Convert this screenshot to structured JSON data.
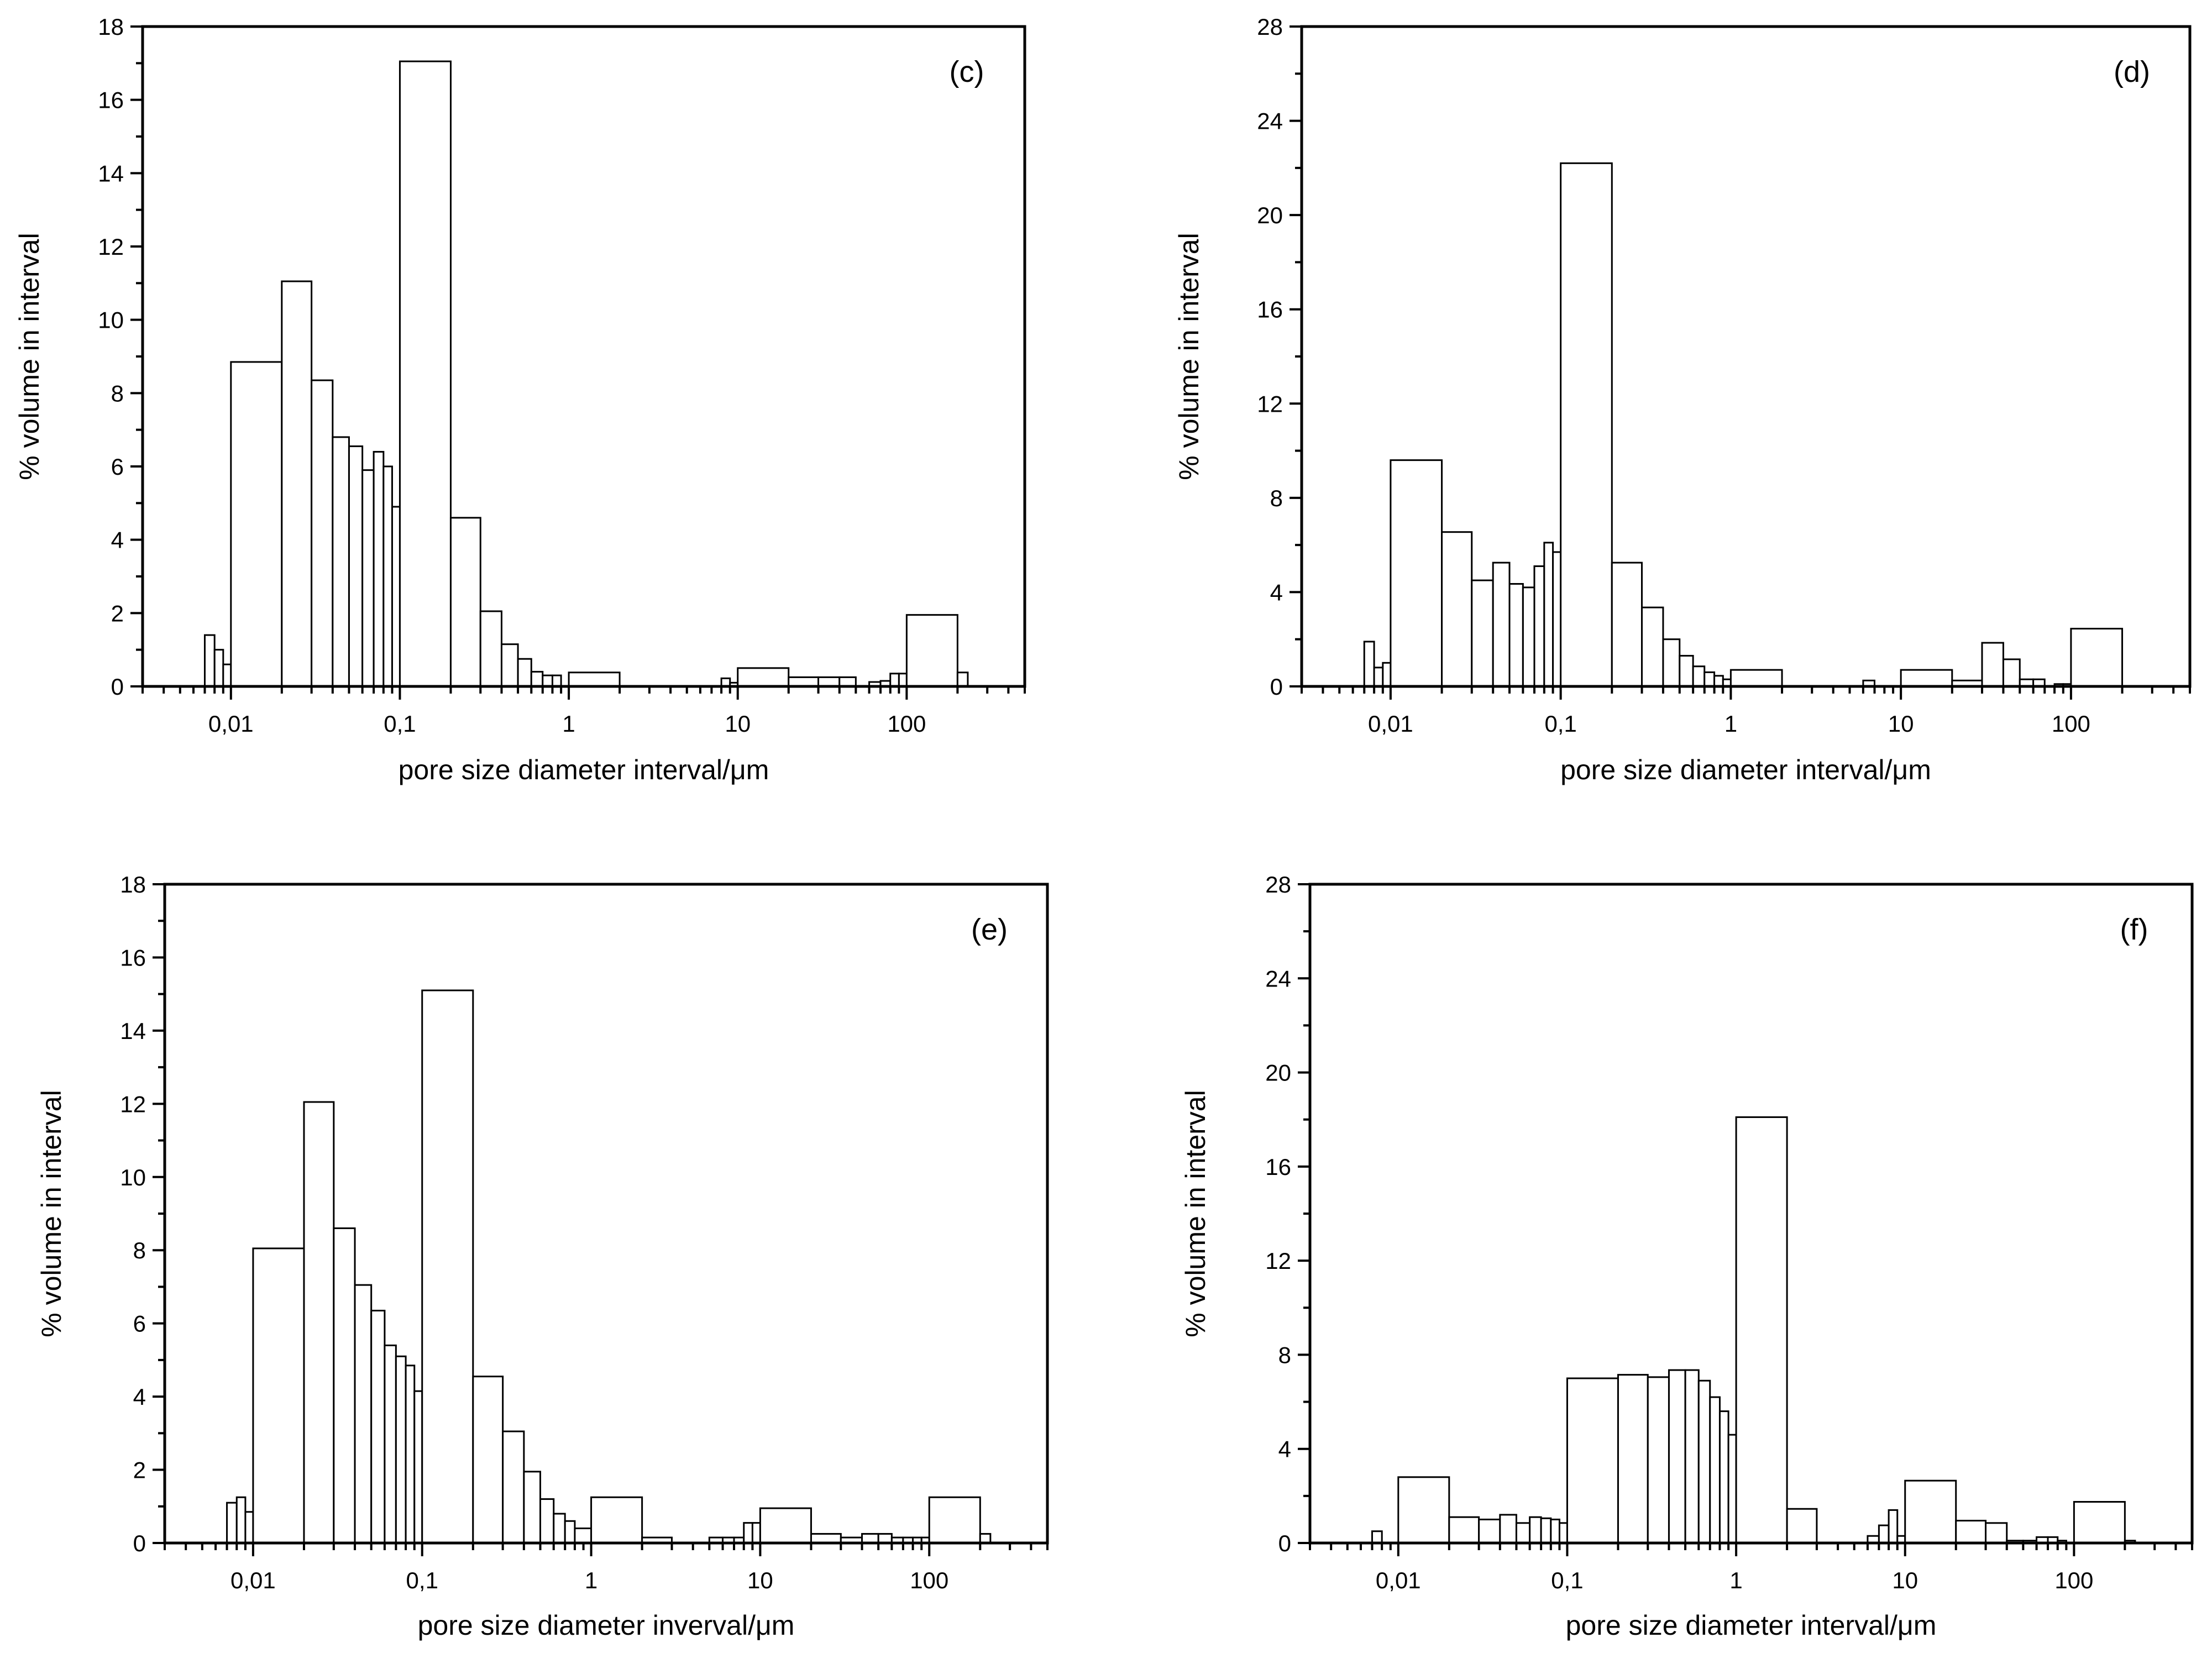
{
  "chart_data": [
    {
      "type": "bar",
      "panel": "(c)",
      "xscale": "log",
      "xlim": [
        0.003,
        500
      ],
      "ylim": [
        0,
        18
      ],
      "yticks": [
        "0",
        "2",
        "4",
        "6",
        "8",
        "10",
        "12",
        "14",
        "16",
        "18"
      ],
      "xticks": [
        "0,01",
        "0,1",
        "1",
        "10",
        "100"
      ],
      "xlabel": "pore size diameter interval/μm",
      "ylabel": "% volume in interval",
      "bins": [
        {
          "x0": 0.007,
          "x1": 0.008,
          "y": 1.4
        },
        {
          "x0": 0.008,
          "x1": 0.009,
          "y": 1.0
        },
        {
          "x0": 0.009,
          "x1": 0.01,
          "y": 0.6
        },
        {
          "x0": 0.01,
          "x1": 0.02,
          "y": 8.85
        },
        {
          "x0": 0.02,
          "x1": 0.03,
          "y": 11.05
        },
        {
          "x0": 0.03,
          "x1": 0.04,
          "y": 8.35
        },
        {
          "x0": 0.04,
          "x1": 0.05,
          "y": 6.8
        },
        {
          "x0": 0.05,
          "x1": 0.06,
          "y": 6.55
        },
        {
          "x0": 0.06,
          "x1": 0.07,
          "y": 5.9
        },
        {
          "x0": 0.07,
          "x1": 0.08,
          "y": 6.4
        },
        {
          "x0": 0.08,
          "x1": 0.09,
          "y": 6.0
        },
        {
          "x0": 0.09,
          "x1": 0.1,
          "y": 4.9
        },
        {
          "x0": 0.1,
          "x1": 0.2,
          "y": 17.05
        },
        {
          "x0": 0.2,
          "x1": 0.3,
          "y": 4.6
        },
        {
          "x0": 0.3,
          "x1": 0.4,
          "y": 2.05
        },
        {
          "x0": 0.4,
          "x1": 0.5,
          "y": 1.15
        },
        {
          "x0": 0.5,
          "x1": 0.6,
          "y": 0.75
        },
        {
          "x0": 0.6,
          "x1": 0.7,
          "y": 0.4
        },
        {
          "x0": 0.7,
          "x1": 0.8,
          "y": 0.3
        },
        {
          "x0": 0.8,
          "x1": 0.9,
          "y": 0.3
        },
        {
          "x0": 1.0,
          "x1": 2.0,
          "y": 0.38
        },
        {
          "x0": 8.0,
          "x1": 9.0,
          "y": 0.22
        },
        {
          "x0": 9.0,
          "x1": 10.0,
          "y": 0.1
        },
        {
          "x0": 10.0,
          "x1": 20.0,
          "y": 0.5
        },
        {
          "x0": 20.0,
          "x1": 30.0,
          "y": 0.25
        },
        {
          "x0": 30.0,
          "x1": 40.0,
          "y": 0.25
        },
        {
          "x0": 40.0,
          "x1": 50.0,
          "y": 0.25
        },
        {
          "x0": 60.0,
          "x1": 70.0,
          "y": 0.12
        },
        {
          "x0": 70.0,
          "x1": 80.0,
          "y": 0.15
        },
        {
          "x0": 80.0,
          "x1": 90.0,
          "y": 0.35
        },
        {
          "x0": 90.0,
          "x1": 100.0,
          "y": 0.35
        },
        {
          "x0": 100.0,
          "x1": 200.0,
          "y": 1.95
        },
        {
          "x0": 200.0,
          "x1": 230.0,
          "y": 0.38
        }
      ]
    },
    {
      "type": "bar",
      "panel": "(d)",
      "xscale": "log",
      "xlim": [
        0.003,
        500
      ],
      "ylim": [
        0,
        28
      ],
      "yticks": [
        "0",
        "4",
        "8",
        "12",
        "16",
        "20",
        "24",
        "28"
      ],
      "xticks": [
        "0,01",
        "0,1",
        "1",
        "10",
        "100"
      ],
      "xlabel": "pore size diameter interval/μm",
      "ylabel": "% volume in interval",
      "bins": [
        {
          "x0": 0.007,
          "x1": 0.008,
          "y": 1.9
        },
        {
          "x0": 0.008,
          "x1": 0.009,
          "y": 0.8
        },
        {
          "x0": 0.009,
          "x1": 0.01,
          "y": 1.0
        },
        {
          "x0": 0.01,
          "x1": 0.02,
          "y": 9.6
        },
        {
          "x0": 0.02,
          "x1": 0.03,
          "y": 6.55
        },
        {
          "x0": 0.03,
          "x1": 0.04,
          "y": 4.5
        },
        {
          "x0": 0.04,
          "x1": 0.05,
          "y": 5.25
        },
        {
          "x0": 0.05,
          "x1": 0.06,
          "y": 4.35
        },
        {
          "x0": 0.06,
          "x1": 0.07,
          "y": 4.2
        },
        {
          "x0": 0.07,
          "x1": 0.08,
          "y": 5.1
        },
        {
          "x0": 0.08,
          "x1": 0.09,
          "y": 6.1
        },
        {
          "x0": 0.09,
          "x1": 0.1,
          "y": 5.7
        },
        {
          "x0": 0.1,
          "x1": 0.2,
          "y": 22.2
        },
        {
          "x0": 0.2,
          "x1": 0.3,
          "y": 5.25
        },
        {
          "x0": 0.3,
          "x1": 0.4,
          "y": 3.35
        },
        {
          "x0": 0.4,
          "x1": 0.5,
          "y": 2.0
        },
        {
          "x0": 0.5,
          "x1": 0.6,
          "y": 1.3
        },
        {
          "x0": 0.6,
          "x1": 0.7,
          "y": 0.85
        },
        {
          "x0": 0.7,
          "x1": 0.8,
          "y": 0.6
        },
        {
          "x0": 0.8,
          "x1": 0.9,
          "y": 0.45
        },
        {
          "x0": 0.9,
          "x1": 1.0,
          "y": 0.3
        },
        {
          "x0": 1.0,
          "x1": 2.0,
          "y": 0.7
        },
        {
          "x0": 6.0,
          "x1": 7.0,
          "y": 0.25
        },
        {
          "x0": 10.0,
          "x1": 20.0,
          "y": 0.7
        },
        {
          "x0": 20.0,
          "x1": 30.0,
          "y": 0.25
        },
        {
          "x0": 30.0,
          "x1": 40.0,
          "y": 1.85
        },
        {
          "x0": 40.0,
          "x1": 50.0,
          "y": 1.15
        },
        {
          "x0": 50.0,
          "x1": 60.0,
          "y": 0.3
        },
        {
          "x0": 60.0,
          "x1": 70.0,
          "y": 0.3
        },
        {
          "x0": 80.0,
          "x1": 90.0,
          "y": 0.1
        },
        {
          "x0": 90.0,
          "x1": 100.0,
          "y": 0.1
        },
        {
          "x0": 100.0,
          "x1": 200.0,
          "y": 2.45
        }
      ]
    },
    {
      "type": "bar",
      "panel": "(e)",
      "xscale": "log",
      "xlim": [
        0.003,
        500
      ],
      "ylim": [
        0,
        18
      ],
      "yticks": [
        "0",
        "2",
        "4",
        "6",
        "8",
        "10",
        "12",
        "14",
        "16",
        "18"
      ],
      "xticks": [
        "0,01",
        "0,1",
        "1",
        "10",
        "100"
      ],
      "xlabel": "pore size diameter inverval/μm",
      "ylabel": "% volume in interval",
      "bins": [
        {
          "x0": 0.007,
          "x1": 0.008,
          "y": 1.1
        },
        {
          "x0": 0.008,
          "x1": 0.009,
          "y": 1.25
        },
        {
          "x0": 0.009,
          "x1": 0.01,
          "y": 0.85
        },
        {
          "x0": 0.01,
          "x1": 0.02,
          "y": 8.05
        },
        {
          "x0": 0.02,
          "x1": 0.03,
          "y": 12.05
        },
        {
          "x0": 0.03,
          "x1": 0.04,
          "y": 8.6
        },
        {
          "x0": 0.04,
          "x1": 0.05,
          "y": 7.05
        },
        {
          "x0": 0.05,
          "x1": 0.06,
          "y": 6.35
        },
        {
          "x0": 0.06,
          "x1": 0.07,
          "y": 5.4
        },
        {
          "x0": 0.07,
          "x1": 0.08,
          "y": 5.1
        },
        {
          "x0": 0.08,
          "x1": 0.09,
          "y": 4.85
        },
        {
          "x0": 0.09,
          "x1": 0.1,
          "y": 4.15
        },
        {
          "x0": 0.1,
          "x1": 0.2,
          "y": 15.1
        },
        {
          "x0": 0.2,
          "x1": 0.3,
          "y": 4.55
        },
        {
          "x0": 0.3,
          "x1": 0.4,
          "y": 3.05
        },
        {
          "x0": 0.4,
          "x1": 0.5,
          "y": 1.95
        },
        {
          "x0": 0.5,
          "x1": 0.6,
          "y": 1.2
        },
        {
          "x0": 0.6,
          "x1": 0.7,
          "y": 0.8
        },
        {
          "x0": 0.7,
          "x1": 0.8,
          "y": 0.6
        },
        {
          "x0": 0.8,
          "x1": 1.0,
          "y": 0.4
        },
        {
          "x0": 1.0,
          "x1": 2.0,
          "y": 1.25
        },
        {
          "x0": 2.0,
          "x1": 3.0,
          "y": 0.15
        },
        {
          "x0": 5.0,
          "x1": 6.0,
          "y": 0.15
        },
        {
          "x0": 6.0,
          "x1": 7.0,
          "y": 0.15
        },
        {
          "x0": 7.0,
          "x1": 8.0,
          "y": 0.15
        },
        {
          "x0": 8.0,
          "x1": 9.0,
          "y": 0.55
        },
        {
          "x0": 9.0,
          "x1": 10.0,
          "y": 0.55
        },
        {
          "x0": 10.0,
          "x1": 20.0,
          "y": 0.95
        },
        {
          "x0": 20.0,
          "x1": 30.0,
          "y": 0.25
        },
        {
          "x0": 30.0,
          "x1": 40.0,
          "y": 0.15
        },
        {
          "x0": 40.0,
          "x1": 50.0,
          "y": 0.25
        },
        {
          "x0": 50.0,
          "x1": 60.0,
          "y": 0.25
        },
        {
          "x0": 60.0,
          "x1": 70.0,
          "y": 0.15
        },
        {
          "x0": 70.0,
          "x1": 80.0,
          "y": 0.15
        },
        {
          "x0": 80.0,
          "x1": 90.0,
          "y": 0.15
        },
        {
          "x0": 90.0,
          "x1": 100.0,
          "y": 0.15
        },
        {
          "x0": 100.0,
          "x1": 200.0,
          "y": 1.25
        },
        {
          "x0": 200.0,
          "x1": 230.0,
          "y": 0.25
        }
      ]
    },
    {
      "type": "bar",
      "panel": "(f)",
      "xscale": "log",
      "xlim": [
        0.003,
        500
      ],
      "ylim": [
        0,
        28
      ],
      "yticks": [
        "0",
        "4",
        "8",
        "12",
        "16",
        "20",
        "24",
        "28"
      ],
      "xticks": [
        "0,01",
        "0,1",
        "1",
        "10",
        "100"
      ],
      "xlabel": "pore size diameter interval/μm",
      "ylabel": "% volume in interval",
      "bins": [
        {
          "x0": 0.007,
          "x1": 0.008,
          "y": 0.5
        },
        {
          "x0": 0.01,
          "x1": 0.02,
          "y": 2.8
        },
        {
          "x0": 0.02,
          "x1": 0.03,
          "y": 1.1
        },
        {
          "x0": 0.03,
          "x1": 0.04,
          "y": 1.0
        },
        {
          "x0": 0.04,
          "x1": 0.05,
          "y": 1.2
        },
        {
          "x0": 0.05,
          "x1": 0.06,
          "y": 0.85
        },
        {
          "x0": 0.06,
          "x1": 0.07,
          "y": 1.1
        },
        {
          "x0": 0.07,
          "x1": 0.08,
          "y": 1.05
        },
        {
          "x0": 0.08,
          "x1": 0.09,
          "y": 1.0
        },
        {
          "x0": 0.09,
          "x1": 0.1,
          "y": 0.85
        },
        {
          "x0": 0.1,
          "x1": 0.2,
          "y": 7.0
        },
        {
          "x0": 0.2,
          "x1": 0.3,
          "y": 7.15
        },
        {
          "x0": 0.3,
          "x1": 0.4,
          "y": 7.05
        },
        {
          "x0": 0.4,
          "x1": 0.5,
          "y": 7.35
        },
        {
          "x0": 0.5,
          "x1": 0.6,
          "y": 7.35
        },
        {
          "x0": 0.6,
          "x1": 0.7,
          "y": 6.9
        },
        {
          "x0": 0.7,
          "x1": 0.8,
          "y": 6.2
        },
        {
          "x0": 0.8,
          "x1": 0.9,
          "y": 5.6
        },
        {
          "x0": 0.9,
          "x1": 1.0,
          "y": 4.6
        },
        {
          "x0": 1.0,
          "x1": 2.0,
          "y": 18.1
        },
        {
          "x0": 2.0,
          "x1": 3.0,
          "y": 1.45
        },
        {
          "x0": 6.0,
          "x1": 7.0,
          "y": 0.3
        },
        {
          "x0": 7.0,
          "x1": 8.0,
          "y": 0.75
        },
        {
          "x0": 8.0,
          "x1": 9.0,
          "y": 1.4
        },
        {
          "x0": 9.0,
          "x1": 10.0,
          "y": 0.3
        },
        {
          "x0": 10.0,
          "x1": 20.0,
          "y": 2.65
        },
        {
          "x0": 20.0,
          "x1": 30.0,
          "y": 0.95
        },
        {
          "x0": 30.0,
          "x1": 40.0,
          "y": 0.85
        },
        {
          "x0": 40.0,
          "x1": 50.0,
          "y": 0.1
        },
        {
          "x0": 50.0,
          "x1": 60.0,
          "y": 0.1
        },
        {
          "x0": 60.0,
          "x1": 70.0,
          "y": 0.25
        },
        {
          "x0": 70.0,
          "x1": 80.0,
          "y": 0.25
        },
        {
          "x0": 80.0,
          "x1": 90.0,
          "y": 0.1
        },
        {
          "x0": 100.0,
          "x1": 200.0,
          "y": 1.75
        },
        {
          "x0": 200.0,
          "x1": 230.0,
          "y": 0.1
        }
      ]
    }
  ]
}
